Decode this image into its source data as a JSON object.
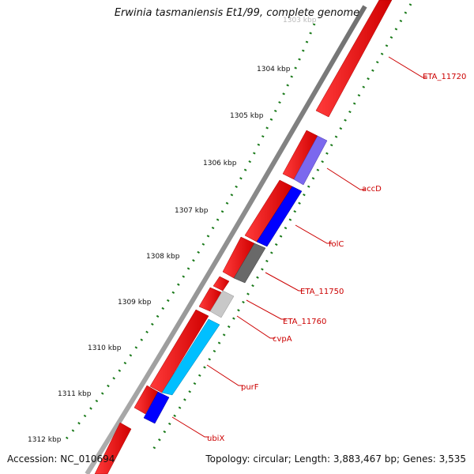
{
  "title": "Erwinia tasmaniensis Et1/99, complete genome",
  "accession": "Accession: NC_010694",
  "summary": "Topology: circular; Length: 3,883,467 bp; Genes: 3,535",
  "ticks": [
    "1303 kbp",
    "1304 kbp",
    "1305 kbp",
    "1306 kbp",
    "1307 kbp",
    "1308 kbp",
    "1309 kbp",
    "1310 kbp",
    "1311 kbp",
    "1312 kbp"
  ],
  "genes": [
    {
      "label": "ETA_11720",
      "color": "#ff0000"
    },
    {
      "label": "accD",
      "color": "#7b68ee"
    },
    {
      "label": "folC",
      "color": "#0000ff"
    },
    {
      "label": "ETA_11750",
      "color": "#696969"
    },
    {
      "label": "ETA_11760",
      "color": "#c8c8c8"
    },
    {
      "label": "cvpA",
      "color": "#00bfff"
    },
    {
      "label": "purF",
      "color": "#00bfff"
    },
    {
      "label": "ubiX",
      "color": "#0000ff"
    }
  ],
  "label_color": "#cc0000",
  "tick_color": "#1a7a1a",
  "backbone_color": "#8c8c8c"
}
